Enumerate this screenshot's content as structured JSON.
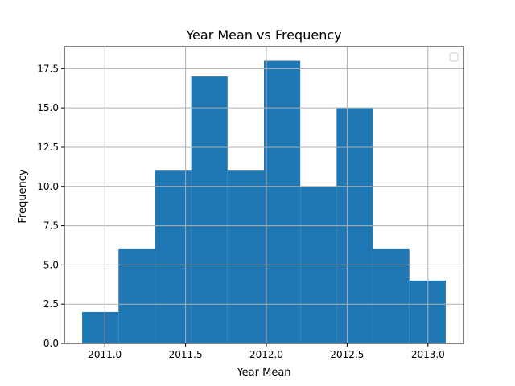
{
  "chart_data": {
    "type": "bar",
    "title": "Year Mean vs Frequency",
    "xlabel": "Year Mean",
    "ylabel": "Frequency",
    "bin_edges": [
      2010.86,
      2011.085,
      2011.31,
      2011.535,
      2011.76,
      2011.985,
      2012.21,
      2012.435,
      2012.66,
      2012.885,
      2013.11
    ],
    "values": [
      2,
      6,
      11,
      17,
      11,
      18,
      10,
      15,
      6,
      4
    ],
    "xlim": [
      2010.75,
      2013.22
    ],
    "ylim": [
      0,
      18.9
    ],
    "xticks": [
      2011.0,
      2011.5,
      2012.0,
      2012.5,
      2013.0
    ],
    "xtick_labels": [
      "2011.0",
      "2011.5",
      "2012.0",
      "2012.5",
      "2013.0"
    ],
    "yticks": [
      0,
      2.5,
      5,
      7.5,
      10,
      12.5,
      15,
      17.5
    ],
    "ytick_labels": [
      "0.0",
      "2.5",
      "5.0",
      "7.5",
      "10.0",
      "12.5",
      "15.0",
      "17.5"
    ],
    "grid": true,
    "legend": "upper right (empty)",
    "bar_color": "#1f77b4",
    "grid_color": "#b0b0b0"
  }
}
